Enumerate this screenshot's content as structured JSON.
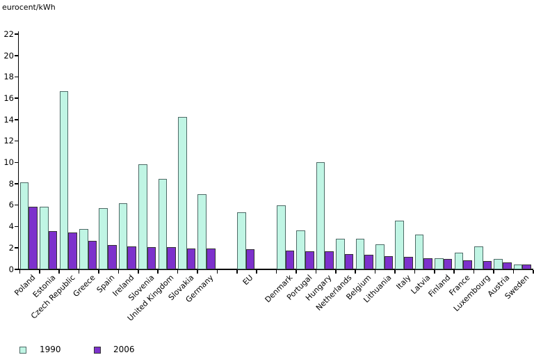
{
  "chart_data": {
    "type": "bar",
    "title": "",
    "unit_label": "eurocent/kWh",
    "xlabel": "",
    "ylabel": "eurocent/kWh",
    "ylim": [
      0,
      22
    ],
    "ytick_step": 2,
    "grid": false,
    "legend_position": "bottom-left",
    "categories": [
      "Poland",
      "Estonia",
      "Czech Republic",
      "Greece",
      "Spain",
      "Ireland",
      "Slovenia",
      "United Kingdom",
      "Slovakia",
      "Germany",
      "EU",
      "Denmark",
      "Portugal",
      "Hungary",
      "Netherlands",
      "Belgium",
      "Lithuania",
      "Italy",
      "Latvia",
      "Finland",
      "France",
      "Luxembourg",
      "Austria",
      "Sweden"
    ],
    "gap_after_categories": [
      "Germany",
      "EU"
    ],
    "series": [
      {
        "name": "1990",
        "color": "#c0f5e4",
        "border_color": "#4d6a66",
        "values": [
          8.1,
          5.8,
          16.6,
          3.7,
          5.7,
          6.1,
          9.8,
          8.4,
          14.2,
          7.0,
          5.3,
          5.9,
          3.6,
          10.0,
          2.8,
          2.8,
          2.3,
          4.5,
          3.2,
          1.0,
          1.5,
          2.1,
          0.9,
          0.4
        ]
      },
      {
        "name": "2006",
        "color": "#7d31cc",
        "border_color": "#333333",
        "values": [
          5.8,
          3.5,
          3.4,
          2.6,
          2.2,
          2.1,
          2.0,
          2.0,
          1.9,
          1.9,
          1.8,
          1.7,
          1.6,
          1.6,
          1.4,
          1.3,
          1.2,
          1.1,
          1.0,
          0.9,
          0.8,
          0.7,
          0.6,
          0.4
        ]
      }
    ],
    "axis_color": "#000000"
  }
}
